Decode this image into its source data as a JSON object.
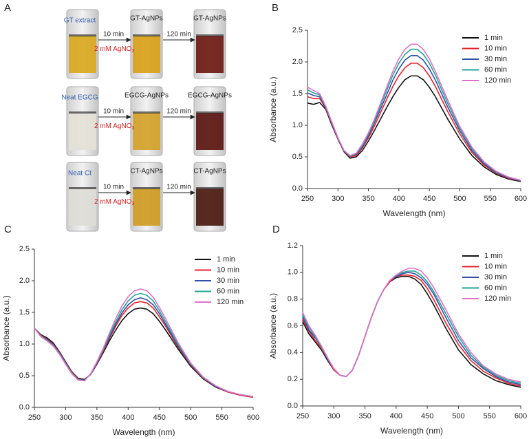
{
  "panel_a": {
    "label": "A",
    "rows": [
      {
        "start": "GT extract",
        "mid": "GT-AgNPs",
        "end": "GT-AgNPs",
        "step1": "10 min",
        "reagent": "2 mM AgNO",
        "reagent_sub": "3",
        "step2": "120 min"
      },
      {
        "start": "Neat EGCG",
        "mid": "EGCG-AgNPs",
        "end": "EGCG-AgNPs",
        "step1": "10 min",
        "reagent": "2 mM AgNO",
        "reagent_sub": "3",
        "step2": "120 min"
      },
      {
        "start": "Neat Ct",
        "mid": "CT-AgNPs",
        "end": "CT-AgNPs",
        "step1": "10 min",
        "reagent": "2 mM AgNO",
        "reagent_sub": "3",
        "step2": "120 min"
      }
    ]
  },
  "chart_data": [
    {
      "type": "line",
      "panel_label": "B",
      "x_label": "Wavelength (nm)",
      "y_label": "Absorbance (a.u.)",
      "legend": "upper right",
      "xlim": [
        250,
        600
      ],
      "xticks": [
        250,
        300,
        350,
        400,
        450,
        500,
        550,
        600
      ],
      "ylim": [
        0,
        2.5
      ],
      "yticks": [
        {
          "value": 0,
          "label": "0.0"
        },
        0.5,
        {
          "value": 1,
          "label": "1.0"
        },
        1.5,
        {
          "value": 2,
          "label": "2.0"
        },
        2.5
      ],
      "x": [
        250,
        260,
        270,
        280,
        290,
        300,
        310,
        320,
        330,
        340,
        350,
        360,
        370,
        380,
        390,
        400,
        410,
        420,
        430,
        440,
        450,
        460,
        480,
        500,
        520,
        540,
        560,
        580,
        600
      ],
      "series": [
        {
          "name": "1 min",
          "color": "#111111",
          "values": [
            1.35,
            1.33,
            1.36,
            1.25,
            1.0,
            0.78,
            0.58,
            0.48,
            0.5,
            0.6,
            0.75,
            0.92,
            1.1,
            1.28,
            1.45,
            1.6,
            1.72,
            1.78,
            1.78,
            1.72,
            1.6,
            1.45,
            1.1,
            0.78,
            0.52,
            0.34,
            0.22,
            0.15,
            0.11
          ]
        },
        {
          "name": "10 min",
          "color": "#e8202a",
          "values": [
            1.45,
            1.42,
            1.42,
            1.27,
            1.02,
            0.79,
            0.59,
            0.5,
            0.52,
            0.64,
            0.8,
            0.99,
            1.2,
            1.41,
            1.61,
            1.78,
            1.91,
            1.98,
            1.98,
            1.91,
            1.78,
            1.61,
            1.22,
            0.86,
            0.57,
            0.37,
            0.24,
            0.16,
            0.12
          ]
        },
        {
          "name": "30 min",
          "color": "#3050a8",
          "values": [
            1.51,
            1.47,
            1.45,
            1.28,
            1.03,
            0.79,
            0.59,
            0.51,
            0.54,
            0.66,
            0.83,
            1.04,
            1.26,
            1.48,
            1.71,
            1.89,
            2.03,
            2.1,
            2.1,
            2.03,
            1.89,
            1.71,
            1.29,
            0.91,
            0.6,
            0.39,
            0.25,
            0.17,
            0.12
          ]
        },
        {
          "name": "60 min",
          "color": "#1fa594",
          "values": [
            1.56,
            1.51,
            1.48,
            1.29,
            1.04,
            0.8,
            0.6,
            0.51,
            0.55,
            0.68,
            0.86,
            1.07,
            1.31,
            1.55,
            1.79,
            1.98,
            2.12,
            2.2,
            2.2,
            2.12,
            1.98,
            1.79,
            1.35,
            0.95,
            0.63,
            0.41,
            0.26,
            0.18,
            0.13
          ]
        },
        {
          "name": "120 min",
          "color": "#e070c8",
          "values": [
            1.6,
            1.55,
            1.5,
            1.3,
            1.05,
            0.8,
            0.6,
            0.52,
            0.56,
            0.7,
            0.88,
            1.1,
            1.35,
            1.6,
            1.85,
            2.05,
            2.2,
            2.28,
            2.28,
            2.2,
            2.05,
            1.85,
            1.4,
            0.98,
            0.65,
            0.42,
            0.27,
            0.18,
            0.13
          ]
        }
      ]
    },
    {
      "type": "line",
      "panel_label": "C",
      "x_label": "Wavelength (nm)",
      "y_label": "Absorbance (a.u.)",
      "legend": "upper right",
      "xlim": [
        250,
        600
      ],
      "xticks": [
        250,
        300,
        350,
        400,
        450,
        500,
        550,
        600
      ],
      "ylim": [
        0,
        2.5
      ],
      "yticks": [
        {
          "value": 0,
          "label": "0.0"
        },
        0.5,
        {
          "value": 1,
          "label": "1.0"
        },
        1.5,
        {
          "value": 2,
          "label": "2.0"
        },
        2.5
      ],
      "x": [
        250,
        260,
        270,
        280,
        290,
        300,
        310,
        320,
        330,
        340,
        350,
        360,
        370,
        380,
        390,
        400,
        410,
        420,
        430,
        440,
        450,
        460,
        480,
        500,
        520,
        540,
        560,
        580,
        600
      ],
      "series": [
        {
          "name": "1 min",
          "color": "#111111",
          "values": [
            1.25,
            1.15,
            1.1,
            1.02,
            0.88,
            0.72,
            0.56,
            0.46,
            0.44,
            0.52,
            0.68,
            0.86,
            1.05,
            1.22,
            1.37,
            1.48,
            1.55,
            1.57,
            1.55,
            1.48,
            1.36,
            1.22,
            0.92,
            0.65,
            0.45,
            0.32,
            0.24,
            0.19,
            0.16
          ]
        },
        {
          "name": "10 min",
          "color": "#e8202a",
          "values": [
            1.25,
            1.14,
            1.08,
            1.0,
            0.87,
            0.71,
            0.55,
            0.45,
            0.43,
            0.52,
            0.69,
            0.88,
            1.09,
            1.28,
            1.45,
            1.57,
            1.65,
            1.67,
            1.65,
            1.57,
            1.43,
            1.28,
            0.95,
            0.67,
            0.46,
            0.33,
            0.24,
            0.19,
            0.16
          ]
        },
        {
          "name": "30 min",
          "color": "#3050a8",
          "values": [
            1.25,
            1.13,
            1.07,
            0.99,
            0.86,
            0.7,
            0.54,
            0.44,
            0.43,
            0.52,
            0.7,
            0.9,
            1.11,
            1.31,
            1.49,
            1.62,
            1.7,
            1.73,
            1.7,
            1.62,
            1.48,
            1.31,
            0.97,
            0.68,
            0.47,
            0.33,
            0.25,
            0.2,
            0.17
          ]
        },
        {
          "name": "60 min",
          "color": "#1fa594",
          "values": [
            1.25,
            1.13,
            1.06,
            0.98,
            0.85,
            0.69,
            0.54,
            0.44,
            0.42,
            0.53,
            0.71,
            0.91,
            1.14,
            1.35,
            1.54,
            1.68,
            1.77,
            1.8,
            1.77,
            1.68,
            1.53,
            1.35,
            0.99,
            0.69,
            0.47,
            0.34,
            0.25,
            0.2,
            0.17
          ]
        },
        {
          "name": "120 min",
          "color": "#e070c8",
          "values": [
            1.25,
            1.12,
            1.05,
            0.97,
            0.84,
            0.68,
            0.53,
            0.43,
            0.42,
            0.53,
            0.72,
            0.93,
            1.17,
            1.4,
            1.6,
            1.75,
            1.84,
            1.87,
            1.84,
            1.74,
            1.58,
            1.4,
            1.02,
            0.7,
            0.48,
            0.34,
            0.25,
            0.2,
            0.17
          ]
        }
      ]
    },
    {
      "type": "line",
      "panel_label": "D",
      "x_label": "Wavelength (nm)",
      "y_label": "Absorbance (a.u.)",
      "legend": "upper right",
      "xlim": [
        250,
        600
      ],
      "xticks": [
        250,
        300,
        350,
        400,
        450,
        500,
        550,
        600
      ],
      "ylim": [
        0,
        1.2
      ],
      "yticks": [
        {
          "value": 0,
          "label": "0.0"
        },
        0.2,
        0.4,
        0.6,
        0.8,
        {
          "value": 1,
          "label": "1.0"
        },
        1.2
      ],
      "x": [
        250,
        260,
        270,
        280,
        290,
        300,
        310,
        320,
        330,
        340,
        350,
        360,
        370,
        380,
        390,
        400,
        410,
        420,
        430,
        440,
        450,
        460,
        480,
        500,
        520,
        540,
        560,
        580,
        600
      ],
      "series": [
        {
          "name": "1 min",
          "color": "#111111",
          "values": [
            0.63,
            0.54,
            0.48,
            0.42,
            0.34,
            0.27,
            0.23,
            0.22,
            0.27,
            0.38,
            0.52,
            0.66,
            0.78,
            0.87,
            0.93,
            0.96,
            0.97,
            0.97,
            0.95,
            0.91,
            0.84,
            0.76,
            0.58,
            0.42,
            0.31,
            0.24,
            0.19,
            0.16,
            0.14
          ]
        },
        {
          "name": "10 min",
          "color": "#e8202a",
          "values": [
            0.65,
            0.56,
            0.49,
            0.43,
            0.35,
            0.27,
            0.23,
            0.22,
            0.27,
            0.38,
            0.52,
            0.66,
            0.78,
            0.87,
            0.93,
            0.97,
            0.98,
            0.98,
            0.97,
            0.94,
            0.88,
            0.8,
            0.62,
            0.46,
            0.34,
            0.26,
            0.21,
            0.17,
            0.15
          ]
        },
        {
          "name": "30 min",
          "color": "#3050a8",
          "values": [
            0.67,
            0.57,
            0.51,
            0.44,
            0.35,
            0.28,
            0.23,
            0.22,
            0.27,
            0.38,
            0.52,
            0.66,
            0.78,
            0.87,
            0.94,
            0.97,
            0.99,
            1.0,
            0.99,
            0.96,
            0.91,
            0.84,
            0.66,
            0.49,
            0.36,
            0.28,
            0.22,
            0.18,
            0.16
          ]
        },
        {
          "name": "60 min",
          "color": "#1fa594",
          "values": [
            0.68,
            0.59,
            0.52,
            0.44,
            0.36,
            0.28,
            0.23,
            0.22,
            0.27,
            0.38,
            0.52,
            0.66,
            0.78,
            0.87,
            0.94,
            0.98,
            1.0,
            1.01,
            1.01,
            0.98,
            0.93,
            0.86,
            0.69,
            0.52,
            0.38,
            0.29,
            0.23,
            0.19,
            0.17
          ]
        },
        {
          "name": "120 min",
          "color": "#e070c8",
          "values": [
            0.7,
            0.6,
            0.53,
            0.45,
            0.36,
            0.28,
            0.23,
            0.22,
            0.27,
            0.38,
            0.52,
            0.66,
            0.78,
            0.87,
            0.94,
            0.98,
            1.01,
            1.03,
            1.03,
            1.01,
            0.96,
            0.89,
            0.72,
            0.54,
            0.4,
            0.3,
            0.24,
            0.2,
            0.18
          ]
        }
      ]
    }
  ]
}
